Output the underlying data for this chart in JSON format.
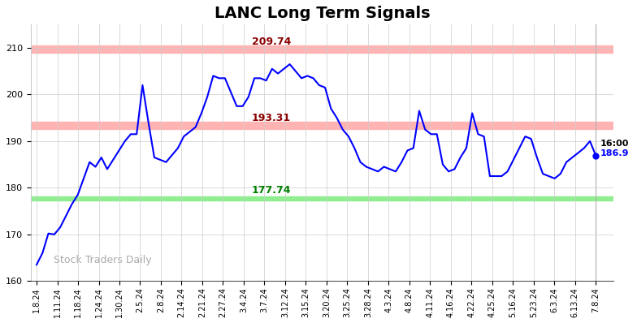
{
  "title": "LANC Long Term Signals",
  "title_fontsize": 14,
  "title_fontweight": "bold",
  "watermark": "Stock Traders Daily",
  "hline_upper": 209.74,
  "hline_mid": 193.31,
  "hline_lower": 177.74,
  "hline_upper_color": "#ffb3b3",
  "hline_mid_color": "#ffb3b3",
  "hline_lower_color": "#90ee90",
  "label_upper": "209.74",
  "label_mid": "193.31",
  "label_lower": "177.74",
  "label_upper_color": "darkred",
  "label_mid_color": "darkred",
  "label_lower_color": "green",
  "last_price": 186.9,
  "line_color": "blue",
  "dot_color": "blue",
  "ylim": [
    160,
    215
  ],
  "yticks": [
    160,
    170,
    180,
    190,
    200,
    210
  ],
  "xtick_labels": [
    "1.8.24",
    "1.11.24",
    "1.18.24",
    "1.24.24",
    "1.30.24",
    "2.5.24",
    "2.8.24",
    "2.14.24",
    "2.21.24",
    "2.27.24",
    "3.4.24",
    "3.7.24",
    "3.12.24",
    "3.15.24",
    "3.20.24",
    "3.25.24",
    "3.28.24",
    "4.3.24",
    "4.8.24",
    "4.11.24",
    "4.16.24",
    "4.22.24",
    "4.25.24",
    "5.16.24",
    "5.23.24",
    "6.3.24",
    "6.13.24",
    "7.8.24"
  ],
  "prices": [
    163.5,
    166.0,
    170.2,
    170.0,
    171.5,
    174.0,
    176.5,
    178.5,
    182.0,
    185.5,
    184.5,
    186.5,
    184.0,
    186.0,
    188.0,
    190.0,
    191.5,
    191.5,
    202.0,
    194.0,
    186.5,
    186.0,
    185.5,
    187.0,
    188.5,
    191.0,
    192.0,
    193.0,
    196.0,
    199.5,
    204.0,
    203.5,
    203.5,
    200.5,
    197.5,
    197.5,
    199.5,
    203.5,
    203.5,
    203.0,
    205.5,
    204.5,
    205.5,
    206.5,
    205.0,
    203.5,
    204.0,
    203.5,
    202.0,
    201.5,
    197.0,
    195.0,
    192.5,
    191.0,
    188.5,
    185.5,
    184.5,
    184.0,
    183.5,
    184.5,
    184.0,
    183.5,
    185.5,
    188.0,
    188.5,
    196.5,
    192.5,
    191.5,
    191.5,
    185.0,
    183.5,
    184.0,
    186.5,
    188.5,
    196.0,
    191.5,
    191.0,
    182.5,
    182.5,
    182.5,
    183.5,
    186.0,
    188.5,
    191.0,
    190.5,
    186.5,
    183.0,
    182.5,
    182.0,
    183.0,
    185.5,
    186.5,
    187.5,
    188.5,
    190.0,
    186.9
  ],
  "background_color": "#ffffff",
  "grid_color": "#cccccc"
}
